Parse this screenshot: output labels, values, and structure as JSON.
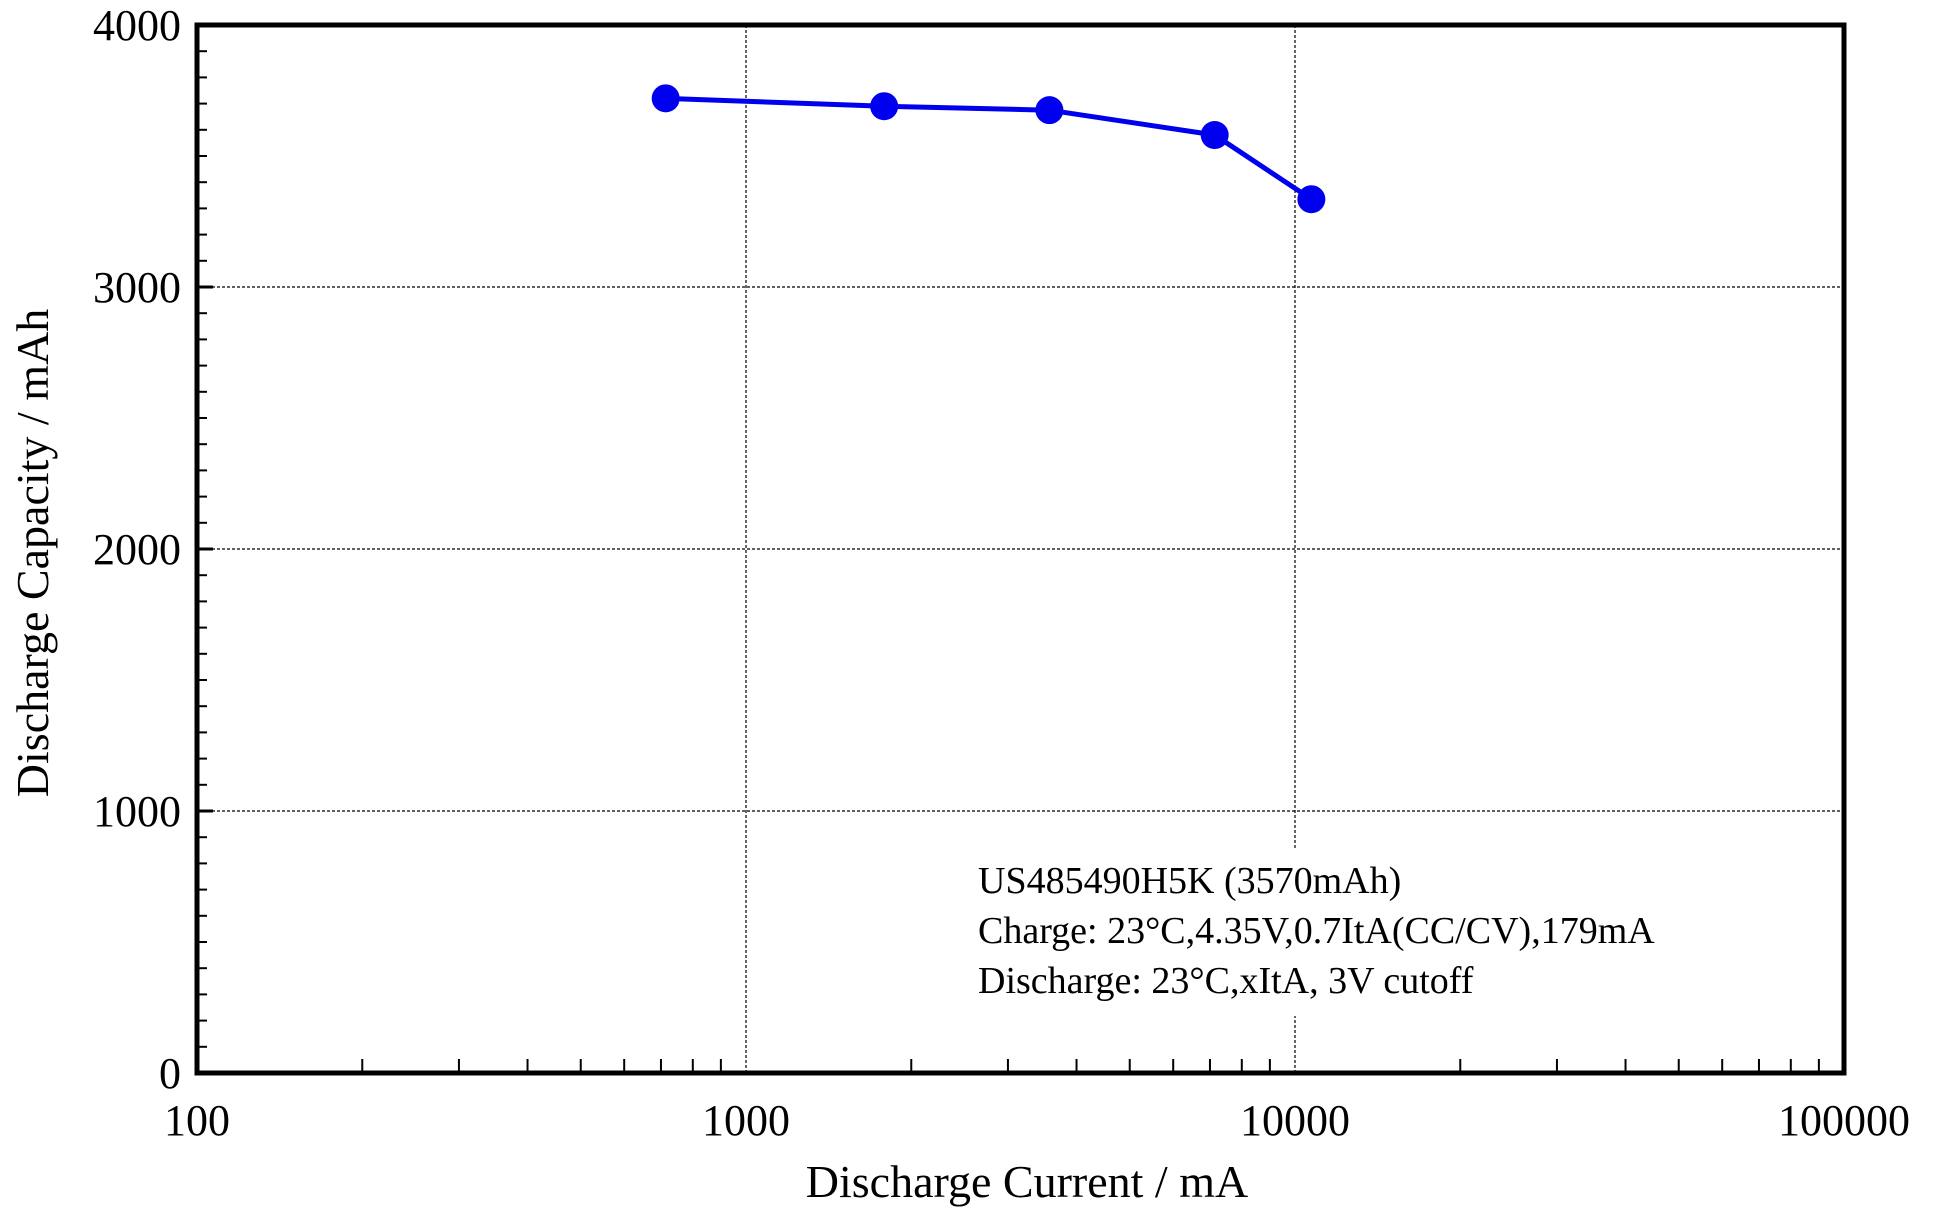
{
  "chart_data": {
    "type": "line",
    "title": "",
    "xlabel": "Discharge Current / mA",
    "ylabel": "Discharge Capacity / mAh",
    "x_scale": "log",
    "xlim": [
      100,
      100000
    ],
    "ylim": [
      0,
      4000
    ],
    "x_ticks": [
      100,
      1000,
      10000,
      100000
    ],
    "x_tick_labels": [
      "100",
      "1000",
      "10000",
      "100000"
    ],
    "y_ticks": [
      0,
      1000,
      2000,
      3000,
      4000
    ],
    "y_tick_labels": [
      "0",
      "1000",
      "2000",
      "3000",
      "4000"
    ],
    "grid": true,
    "series": [
      {
        "color": "#0000ee",
        "marker": "circle",
        "x": [
          714,
          1785,
          3570,
          7140,
          10710
        ],
        "y": [
          3720,
          3690,
          3675,
          3580,
          3335
        ]
      }
    ],
    "annotation": [
      "US485490H5K (3570mAh)",
      "Charge: 23°C,4.35V,0.7ItA(CC/CV),179mA",
      "Discharge: 23°C,xItA, 3V cutoff"
    ]
  }
}
